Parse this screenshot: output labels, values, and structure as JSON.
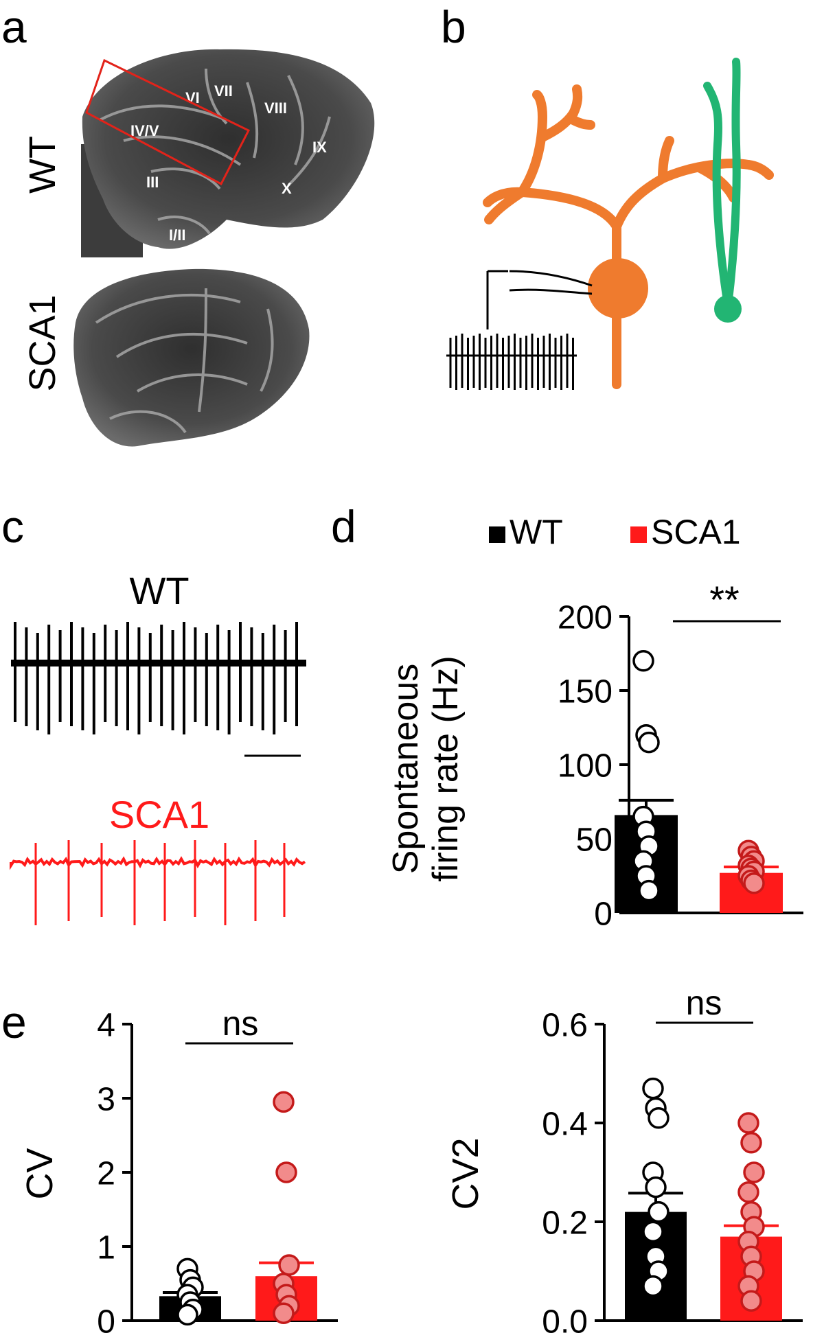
{
  "panels": {
    "a": {
      "letter": "a",
      "wt_label": "WT",
      "sca1_label": "SCA1",
      "lobules": [
        "VI",
        "VII",
        "IV/V",
        "VIII",
        "IX",
        "III",
        "X",
        "I/II"
      ]
    },
    "b": {
      "letter": "b"
    },
    "c": {
      "letter": "c",
      "wt_label": "WT",
      "sca1_label": "SCA1"
    },
    "d": {
      "letter": "d"
    },
    "e": {
      "letter": "e"
    }
  },
  "legend": {
    "wt": "WT",
    "sca1": "SCA1"
  },
  "colors": {
    "wt": "#000000",
    "sca1": "#ff1a1a",
    "sca1_point": "#f28b8b",
    "purkinje": "#ef7b2e",
    "granule": "#22b573"
  },
  "chart_data": [
    {
      "id": "d",
      "type": "bar",
      "ylabel_line1": "Spontaneous",
      "ylabel_line2": "firing rate (Hz)",
      "ylim": [
        0,
        200
      ],
      "ticks": [
        "0",
        "50",
        "100",
        "150",
        "200"
      ],
      "tick_values": [
        0,
        50,
        100,
        150,
        200
      ],
      "significance": "**",
      "series": [
        {
          "name": "WT",
          "mean": 66,
          "sem": 10,
          "points": [
            170,
            120,
            115,
            65,
            55,
            45,
            35,
            25,
            15
          ]
        },
        {
          "name": "SCA1",
          "mean": 27,
          "sem": 4,
          "points": [
            42,
            38,
            35,
            32,
            30,
            28,
            25,
            22,
            20
          ]
        }
      ]
    },
    {
      "id": "e1",
      "type": "bar",
      "ylabel": "CV",
      "ylim": [
        0,
        4
      ],
      "ticks": [
        "0",
        "1",
        "2",
        "3",
        "4"
      ],
      "tick_values": [
        0,
        1,
        2,
        3,
        4
      ],
      "significance": "ns",
      "series": [
        {
          "name": "WT",
          "mean": 0.33,
          "sem": 0.05,
          "points": [
            0.7,
            0.55,
            0.45,
            0.35,
            0.25,
            0.15,
            0.08
          ]
        },
        {
          "name": "SCA1",
          "mean": 0.6,
          "sem": 0.18,
          "points": [
            2.95,
            2.0,
            0.75,
            0.5,
            0.35,
            0.2,
            0.1
          ]
        }
      ]
    },
    {
      "id": "e2",
      "type": "bar",
      "ylabel": "CV2",
      "ylim": [
        0,
        0.6
      ],
      "ticks": [
        "0.0",
        "0.2",
        "0.4",
        "0.6"
      ],
      "tick_values": [
        0,
        0.2,
        0.4,
        0.6
      ],
      "significance": "ns",
      "series": [
        {
          "name": "WT",
          "mean": 0.22,
          "sem": 0.038,
          "points": [
            0.47,
            0.43,
            0.41,
            0.3,
            0.27,
            0.22,
            0.18,
            0.13,
            0.1,
            0.07
          ]
        },
        {
          "name": "SCA1",
          "mean": 0.17,
          "sem": 0.022,
          "points": [
            0.4,
            0.36,
            0.3,
            0.26,
            0.22,
            0.19,
            0.16,
            0.13,
            0.1,
            0.07,
            0.04
          ]
        }
      ]
    }
  ]
}
